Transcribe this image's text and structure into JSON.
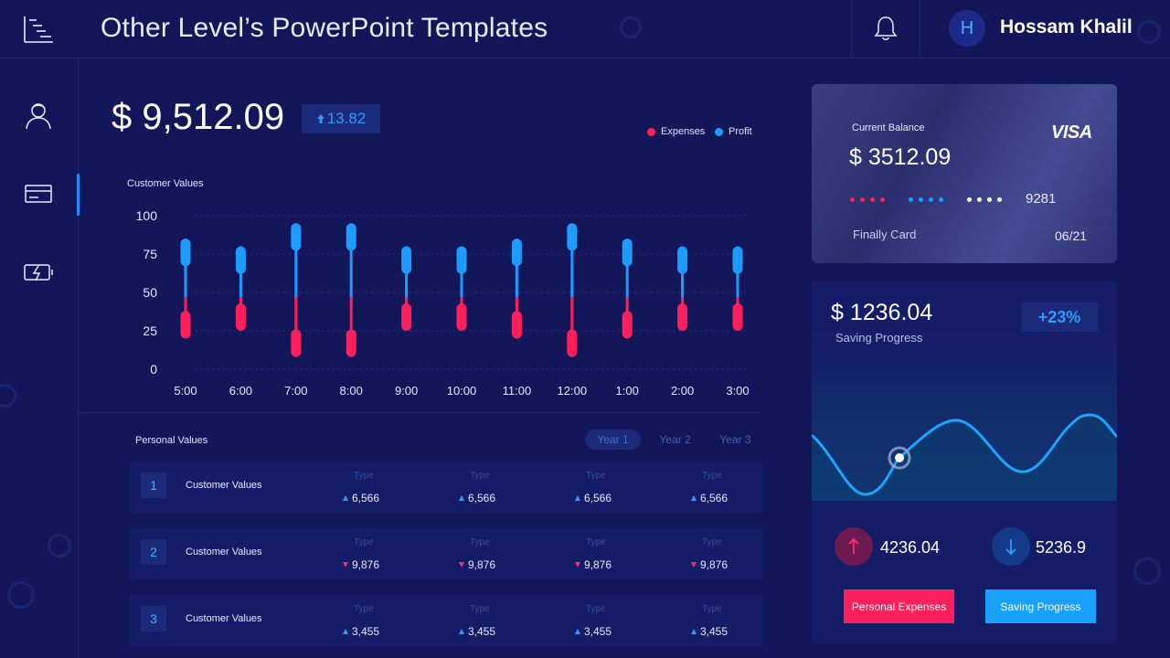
{
  "header": {
    "title": "Other Level’s PowerPoint Templates",
    "user_initial": "H",
    "user_name": "Hossam Khalil"
  },
  "sidebar": {
    "items": [
      {
        "icon": "user-icon",
        "active": false
      },
      {
        "icon": "credit-card-icon",
        "active": true
      },
      {
        "icon": "battery-charging-icon",
        "active": false
      }
    ]
  },
  "main": {
    "balance": "$ 9,512.09",
    "delta": "13.82",
    "legend": [
      {
        "label": "Expenses",
        "color": "#ff1f5a"
      },
      {
        "label": "Profit",
        "color": "#1e9bff"
      }
    ],
    "chart_label": "Customer Values"
  },
  "chart_data": {
    "type": "bar",
    "categories": [
      "5:00",
      "6:00",
      "7:00",
      "8:00",
      "9:00",
      "10:00",
      "11:00",
      "12:00",
      "1:00",
      "2:00",
      "3:00"
    ],
    "yticks": [
      100,
      75,
      50,
      25,
      0
    ],
    "ylim": [
      0,
      100
    ],
    "series": [
      {
        "name": "Profit",
        "color": "#1e9bff",
        "values": [
          85,
          80,
          95,
          95,
          80,
          80,
          85,
          95,
          85,
          80,
          80
        ]
      },
      {
        "name": "Expenses",
        "color": "#ff1f5a",
        "values": [
          20,
          25,
          8,
          8,
          25,
          25,
          20,
          8,
          20,
          25,
          25
        ]
      }
    ],
    "grid": true
  },
  "table": {
    "label": "Personal Values",
    "tabs": [
      "Year 1",
      "Year 2",
      "Year 3"
    ],
    "active_tab": 0,
    "type_label": "Type",
    "rows": [
      {
        "num": "1",
        "name": "Customer Values",
        "trend": "up",
        "values": [
          "6,566",
          "6,566",
          "6,566",
          "6,566"
        ]
      },
      {
        "num": "2",
        "name": "Customer Values",
        "trend": "down",
        "values": [
          "9,876",
          "9,876",
          "9,876",
          "9,876"
        ]
      },
      {
        "num": "3",
        "name": "Customer Values",
        "trend": "up",
        "values": [
          "3,455",
          "3,455",
          "3,455",
          "3,455"
        ]
      }
    ]
  },
  "card": {
    "label": "Current Balance",
    "amount": "$ 3512.09",
    "brand": "VISA",
    "last4": "9281",
    "name": "Finally Card",
    "expiry": "06/21",
    "dot_colors": [
      "#ff1f5a",
      "#1e9bff",
      "#ffffff"
    ]
  },
  "saving": {
    "amount": "$ 1236.04",
    "subtitle": "Saving Progress",
    "percent": "+23%",
    "stat_up": "4236.04",
    "stat_down": "5236.9",
    "button_expenses": "Personal Expenses",
    "button_saving": "Saving Progress"
  },
  "colors": {
    "background": "#13175a",
    "accent_blue": "#1e9bff",
    "accent_red": "#ff1f5a"
  }
}
